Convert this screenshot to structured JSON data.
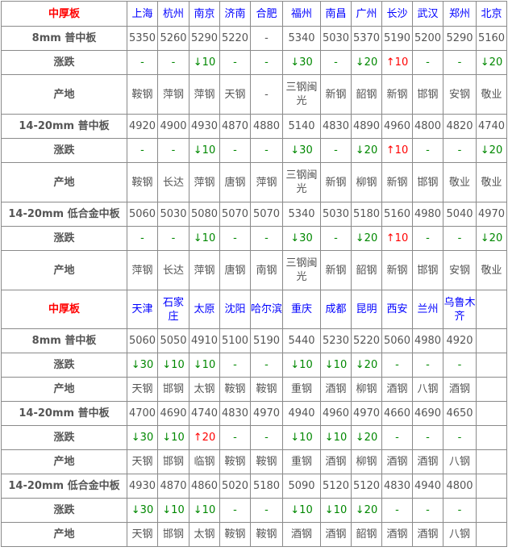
{
  "colors": {
    "title": "#ff0000",
    "city": "#0000ff",
    "down": "#008800",
    "up": "#ff0000"
  },
  "sections": [
    {
      "title": "中厚板",
      "cities": [
        "上海",
        "杭州",
        "南京",
        "济南",
        "合肥",
        "福州",
        "南昌",
        "广州",
        "长沙",
        "武汉",
        "郑州",
        "北京"
      ],
      "products": [
        {
          "name": "8mm 普中板",
          "prices": [
            "5350",
            "5260",
            "5290",
            "5220",
            "-",
            "5340",
            "5030",
            "5370",
            "5190",
            "5200",
            "5290",
            "5160"
          ],
          "change_label": "涨跌",
          "changes": [
            "-",
            "-",
            "↓10",
            "-",
            "-",
            "↓30",
            "-",
            "↓20",
            "↑10",
            "-",
            "-",
            "↓20"
          ],
          "origin_label": "产地",
          "origins": [
            "鞍钢",
            "萍钢",
            "萍钢",
            "天钢",
            "-",
            "三钢闽光",
            "新钢",
            "韶钢",
            "新钢",
            "邯钢",
            "安钢",
            "敬业"
          ]
        },
        {
          "name": "14-20mm 普中板",
          "prices": [
            "4920",
            "4900",
            "4930",
            "4870",
            "4880",
            "5140",
            "4830",
            "4890",
            "4960",
            "4800",
            "4820",
            "4740"
          ],
          "change_label": "涨跌",
          "changes": [
            "-",
            "-",
            "↓10",
            "-",
            "-",
            "↓30",
            "-",
            "↓20",
            "↑10",
            "-",
            "-",
            "↓20"
          ],
          "origin_label": "产地",
          "origins": [
            "鞍钢",
            "长达",
            "萍钢",
            "唐钢",
            "萍钢",
            "三钢闽光",
            "新钢",
            "柳钢",
            "新钢",
            "邯钢",
            "敬业",
            "敬业"
          ]
        },
        {
          "name": "14-20mm 低合金中板",
          "prices": [
            "5060",
            "5030",
            "5080",
            "5070",
            "5070",
            "5340",
            "5030",
            "5180",
            "5160",
            "4980",
            "5040",
            "4970"
          ],
          "change_label": "涨跌",
          "changes": [
            "-",
            "-",
            "↓10",
            "-",
            "-",
            "↓30",
            "-",
            "↓20",
            "↑10",
            "-",
            "-",
            "↓20"
          ],
          "origin_label": "产地",
          "origins": [
            "萍钢",
            "长达",
            "萍钢",
            "唐钢",
            "南钢",
            "三钢闽光",
            "新钢",
            "韶钢",
            "新钢",
            "邯钢",
            "安钢",
            "敬业"
          ]
        }
      ]
    },
    {
      "title": "中厚板",
      "cities": [
        "天津",
        "石家庄",
        "太原",
        "沈阳",
        "哈尔滨",
        "重庆",
        "成都",
        "昆明",
        "西安",
        "兰州",
        "乌鲁木齐",
        ""
      ],
      "products": [
        {
          "name": "8mm 普中板",
          "prices": [
            "5060",
            "5050",
            "4910",
            "5100",
            "5190",
            "5440",
            "5230",
            "5220",
            "5060",
            "4980",
            "4920",
            ""
          ],
          "change_label": "涨跌",
          "changes": [
            "↓30",
            "↓10",
            "↓10",
            "-",
            "-",
            "↓10",
            "↓10",
            "↓20",
            "-",
            "-",
            "-",
            ""
          ],
          "origin_label": "产地",
          "origins": [
            "天钢",
            "邯钢",
            "太钢",
            "鞍钢",
            "鞍钢",
            "重钢",
            "酒钢",
            "柳钢",
            "酒钢",
            "八钢",
            "酒钢",
            ""
          ]
        },
        {
          "name": "14-20mm 普中板",
          "prices": [
            "4700",
            "4690",
            "4740",
            "4830",
            "4970",
            "4940",
            "4960",
            "4970",
            "4660",
            "4690",
            "4650",
            ""
          ],
          "change_label": "涨跌",
          "changes": [
            "↓30",
            "↓10",
            "↑20",
            "-",
            "-",
            "↓10",
            "↓10",
            "↓20",
            "-",
            "-",
            "-",
            ""
          ],
          "origin_label": "产地",
          "origins": [
            "天钢",
            "邯钢",
            "临钢",
            "鞍钢",
            "鞍钢",
            "重钢",
            "酒钢",
            "柳钢",
            "酒钢",
            "酒钢",
            "八钢",
            ""
          ]
        },
        {
          "name": "14-20mm 低合金中板",
          "prices": [
            "4930",
            "4870",
            "4860",
            "5020",
            "5180",
            "5090",
            "5120",
            "5120",
            "4830",
            "4940",
            "4800",
            ""
          ],
          "change_label": "涨跌",
          "changes": [
            "↓30",
            "↓10",
            "↓10",
            "-",
            "-",
            "↓10",
            "↓10",
            "↓20",
            "-",
            "-",
            "-",
            ""
          ],
          "origin_label": "产地",
          "origins": [
            "天钢",
            "邯钢",
            "太钢",
            "鞍钢",
            "鞍钢",
            "酒钢",
            "酒钢",
            "韶钢",
            "酒钢",
            "酒钢",
            "八钢",
            ""
          ]
        }
      ]
    }
  ]
}
